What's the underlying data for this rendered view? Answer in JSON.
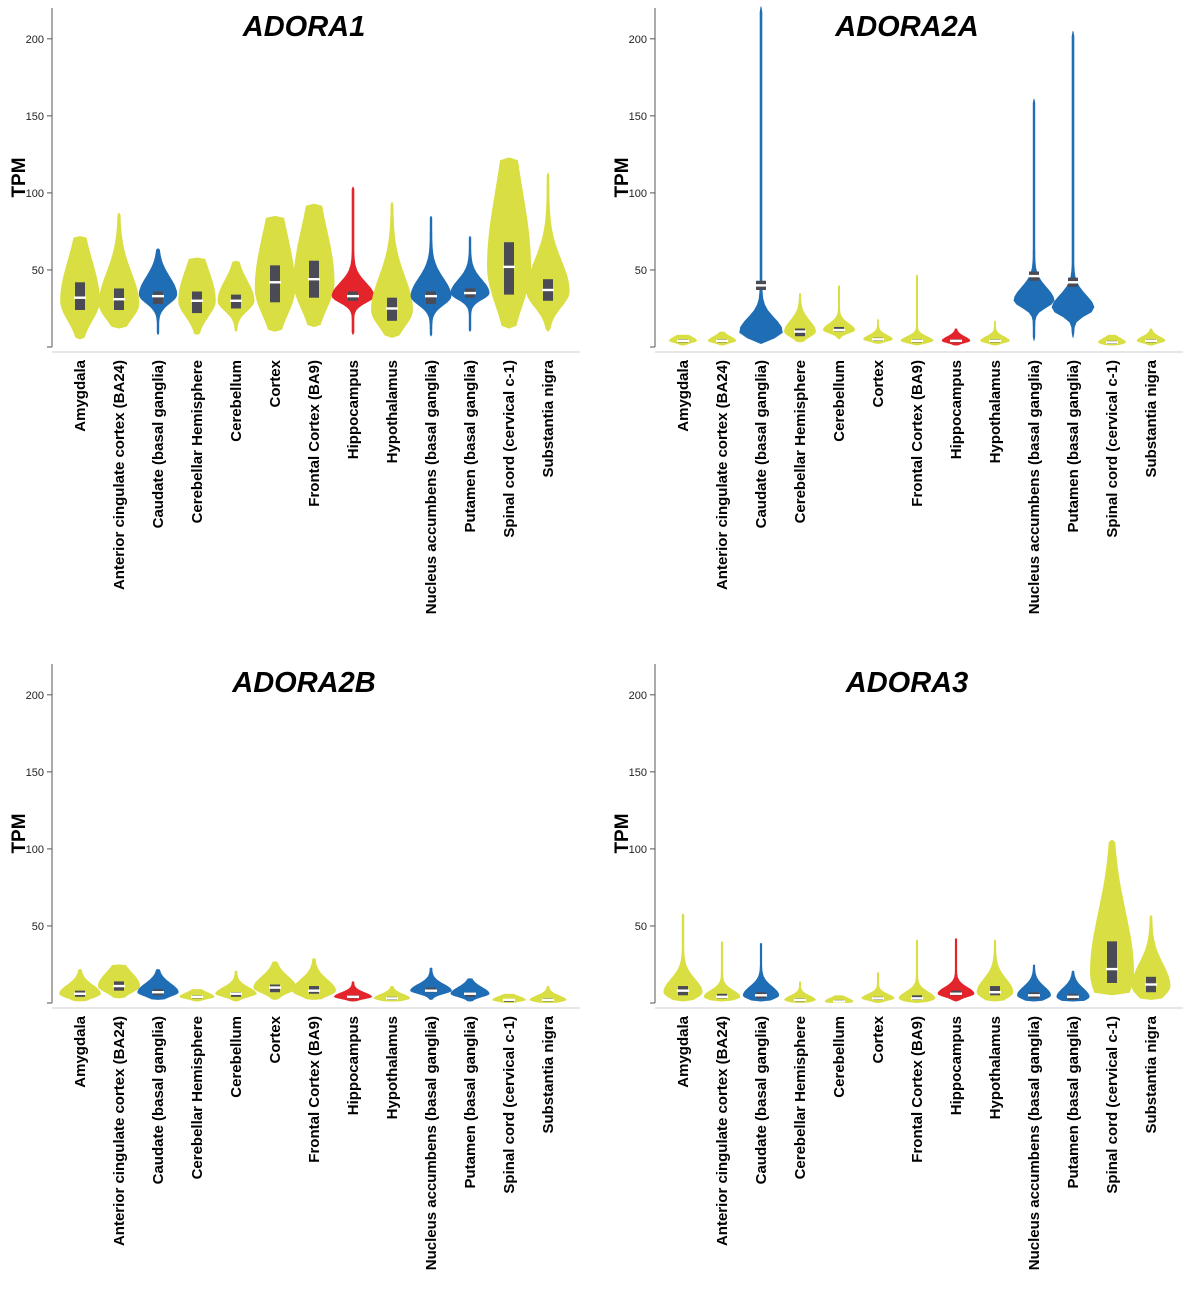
{
  "colors": {
    "yellow": "#d9de43",
    "blue": "#1f6eb5",
    "red": "#e3242b",
    "box": "#4b4b55",
    "median": "#ffffff"
  },
  "chart_data": [
    {
      "type": "violin",
      "title": "ADORA1",
      "ylabel": "TPM",
      "ylim": [
        0,
        220
      ],
      "yticks": [
        50,
        100,
        150,
        200
      ],
      "categories": [
        "Amygdala",
        "Anterior cingulate cortex (BA24)",
        "Caudate (basal ganglia)",
        "Cerebellar Hemisphere",
        "Cerebellum",
        "Cortex",
        "Frontal Cortex (BA9)",
        "Hippocampus",
        "Hypothalamus",
        "Nucleus accumbens (basal ganglia)",
        "Putamen (basal ganglia)",
        "Spinal cord (cervical c-1)",
        "Substantia nigra"
      ],
      "series": [
        {
          "color": "yellow",
          "min": 5,
          "max": 72,
          "q1": 24,
          "median": 32,
          "q3": 42,
          "mode": 30
        },
        {
          "color": "yellow",
          "min": 12,
          "max": 87,
          "q1": 24,
          "median": 31,
          "q3": 38,
          "mode": 28
        },
        {
          "color": "blue",
          "min": 8,
          "max": 64,
          "q1": 28,
          "median": 33,
          "q3": 36,
          "mode": 34
        },
        {
          "color": "yellow",
          "min": 8,
          "max": 58,
          "q1": 22,
          "median": 30,
          "q3": 36,
          "mode": 30
        },
        {
          "color": "yellow",
          "min": 10,
          "max": 56,
          "q1": 25,
          "median": 30,
          "q3": 34,
          "mode": 30
        },
        {
          "color": "yellow",
          "min": 10,
          "max": 85,
          "q1": 29,
          "median": 42,
          "q3": 53,
          "mode": 38
        },
        {
          "color": "yellow",
          "min": 13,
          "max": 93,
          "q1": 32,
          "median": 44,
          "q3": 56,
          "mode": 42
        },
        {
          "color": "red",
          "min": 8,
          "max": 104,
          "q1": 30,
          "median": 33,
          "q3": 36,
          "mode": 33
        },
        {
          "color": "yellow",
          "min": 6,
          "max": 94,
          "q1": 17,
          "median": 25,
          "q3": 32,
          "mode": 24
        },
        {
          "color": "blue",
          "min": 7,
          "max": 85,
          "q1": 28,
          "median": 33,
          "q3": 36,
          "mode": 33
        },
        {
          "color": "blue",
          "min": 10,
          "max": 72,
          "q1": 32,
          "median": 35,
          "q3": 38,
          "mode": 35
        },
        {
          "color": "yellow",
          "min": 12,
          "max": 123,
          "q1": 34,
          "median": 52,
          "q3": 68,
          "mode": 52
        },
        {
          "color": "yellow",
          "min": 10,
          "max": 113,
          "q1": 30,
          "median": 37,
          "q3": 44,
          "mode": 36
        }
      ]
    },
    {
      "type": "violin",
      "title": "ADORA2A",
      "ylabel": "TPM",
      "ylim": [
        0,
        220
      ],
      "yticks": [
        50,
        100,
        150,
        200
      ],
      "categories": [
        "Amygdala",
        "Anterior cingulate cortex (BA24)",
        "Caudate (basal ganglia)",
        "Cerebellar Hemisphere",
        "Cerebellum",
        "Cortex",
        "Frontal Cortex (BA9)",
        "Hippocampus",
        "Hypothalamus",
        "Nucleus accumbens (basal ganglia)",
        "Putamen (basal ganglia)",
        "Spinal cord (cervical c-1)",
        "Substantia nigra"
      ],
      "series": [
        {
          "color": "yellow",
          "min": 1,
          "max": 8,
          "q1": 3,
          "median": 4,
          "q3": 5,
          "mode": 4
        },
        {
          "color": "yellow",
          "min": 1,
          "max": 10,
          "q1": 3,
          "median": 4,
          "q3": 5,
          "mode": 4
        },
        {
          "color": "blue",
          "min": 2,
          "max": 221,
          "q1": 37,
          "median": 40,
          "q3": 43,
          "mode": 10
        },
        {
          "color": "yellow",
          "min": 3,
          "max": 35,
          "q1": 7,
          "median": 10,
          "q3": 12,
          "mode": 10
        },
        {
          "color": "yellow",
          "min": 5,
          "max": 40,
          "q1": 10,
          "median": 11,
          "q3": 13,
          "mode": 11
        },
        {
          "color": "yellow",
          "min": 2,
          "max": 18,
          "q1": 4,
          "median": 5,
          "q3": 6,
          "mode": 5
        },
        {
          "color": "yellow",
          "min": 1,
          "max": 47,
          "q1": 3,
          "median": 4,
          "q3": 5,
          "mode": 4
        },
        {
          "color": "red",
          "min": 1,
          "max": 12,
          "q1": 3,
          "median": 4,
          "q3": 5,
          "mode": 4
        },
        {
          "color": "yellow",
          "min": 1,
          "max": 17,
          "q1": 3,
          "median": 4,
          "q3": 5,
          "mode": 4
        },
        {
          "color": "blue",
          "min": 4,
          "max": 161,
          "q1": 43,
          "median": 46,
          "q3": 49,
          "mode": 30
        },
        {
          "color": "blue",
          "min": 6,
          "max": 205,
          "q1": 39,
          "median": 42,
          "q3": 45,
          "mode": 25
        },
        {
          "color": "yellow",
          "min": 1,
          "max": 8,
          "q1": 2,
          "median": 3,
          "q3": 4,
          "mode": 3
        },
        {
          "color": "yellow",
          "min": 1,
          "max": 12,
          "q1": 3,
          "median": 4,
          "q3": 5,
          "mode": 4
        }
      ]
    },
    {
      "type": "violin",
      "title": "ADORA2B",
      "ylabel": "TPM",
      "ylim": [
        0,
        220
      ],
      "yticks": [
        50,
        100,
        150,
        200
      ],
      "categories": [
        "Amygdala",
        "Anterior cingulate cortex (BA24)",
        "Caudate (basal ganglia)",
        "Cerebellar Hemisphere",
        "Cerebellum",
        "Cortex",
        "Frontal Cortex (BA9)",
        "Hippocampus",
        "Hypothalamus",
        "Nucleus accumbens (basal ganglia)",
        "Putamen (basal ganglia)",
        "Spinal cord (cervical c-1)",
        "Substantia nigra"
      ],
      "series": [
        {
          "color": "yellow",
          "min": 1,
          "max": 22,
          "q1": 4,
          "median": 6,
          "q3": 8,
          "mode": 6
        },
        {
          "color": "yellow",
          "min": 3,
          "max": 25,
          "q1": 8,
          "median": 11,
          "q3": 14,
          "mode": 11
        },
        {
          "color": "blue",
          "min": 2,
          "max": 22,
          "q1": 5,
          "median": 7,
          "q3": 9,
          "mode": 7
        },
        {
          "color": "yellow",
          "min": 1,
          "max": 9,
          "q1": 3,
          "median": 4,
          "q3": 5,
          "mode": 4
        },
        {
          "color": "yellow",
          "min": 1,
          "max": 21,
          "q1": 4,
          "median": 6,
          "q3": 7,
          "mode": 6
        },
        {
          "color": "yellow",
          "min": 2,
          "max": 27,
          "q1": 7,
          "median": 10,
          "q3": 12,
          "mode": 10
        },
        {
          "color": "yellow",
          "min": 2,
          "max": 29,
          "q1": 6,
          "median": 8,
          "q3": 11,
          "mode": 8
        },
        {
          "color": "red",
          "min": 1,
          "max": 14,
          "q1": 3,
          "median": 4,
          "q3": 5,
          "mode": 4
        },
        {
          "color": "yellow",
          "min": 1,
          "max": 11,
          "q1": 2,
          "median": 3,
          "q3": 4,
          "mode": 3
        },
        {
          "color": "blue",
          "min": 2,
          "max": 23,
          "q1": 7,
          "median": 8,
          "q3": 10,
          "mode": 8
        },
        {
          "color": "blue",
          "min": 1,
          "max": 16,
          "q1": 4,
          "median": 6,
          "q3": 7,
          "mode": 6
        },
        {
          "color": "yellow",
          "min": 0,
          "max": 6,
          "q1": 1,
          "median": 2,
          "q3": 2,
          "mode": 2
        },
        {
          "color": "yellow",
          "min": 0,
          "max": 11,
          "q1": 1,
          "median": 2,
          "q3": 3,
          "mode": 2
        }
      ]
    },
    {
      "type": "violin",
      "title": "ADORA3",
      "ylabel": "TPM",
      "ylim": [
        0,
        220
      ],
      "yticks": [
        50,
        100,
        150,
        200
      ],
      "categories": [
        "Amygdala",
        "Anterior cingulate cortex (BA24)",
        "Caudate (basal ganglia)",
        "Cerebellar Hemisphere",
        "Cerebellum",
        "Cortex",
        "Frontal Cortex (BA9)",
        "Hippocampus",
        "Hypothalamus",
        "Nucleus accumbens (basal ganglia)",
        "Putamen (basal ganglia)",
        "Spinal cord (cervical c-1)",
        "Substantia nigra"
      ],
      "series": [
        {
          "color": "yellow",
          "min": 1,
          "max": 58,
          "q1": 5,
          "median": 8,
          "q3": 11,
          "mode": 7
        },
        {
          "color": "yellow",
          "min": 1,
          "max": 40,
          "q1": 3,
          "median": 4,
          "q3": 6,
          "mode": 4
        },
        {
          "color": "blue",
          "min": 1,
          "max": 39,
          "q1": 3,
          "median": 5,
          "q3": 7,
          "mode": 5
        },
        {
          "color": "yellow",
          "min": 0,
          "max": 14,
          "q1": 1,
          "median": 2,
          "q3": 3,
          "mode": 2
        },
        {
          "color": "yellow",
          "min": 0,
          "max": 5,
          "q1": 1,
          "median": 1,
          "q3": 2,
          "mode": 1
        },
        {
          "color": "yellow",
          "min": 0,
          "max": 20,
          "q1": 2,
          "median": 3,
          "q3": 4,
          "mode": 3
        },
        {
          "color": "yellow",
          "min": 0,
          "max": 41,
          "q1": 2,
          "median": 3,
          "q3": 5,
          "mode": 3
        },
        {
          "color": "red",
          "min": 1,
          "max": 42,
          "q1": 5,
          "median": 6,
          "q3": 8,
          "mode": 6
        },
        {
          "color": "yellow",
          "min": 1,
          "max": 41,
          "q1": 5,
          "median": 7,
          "q3": 11,
          "mode": 7
        },
        {
          "color": "blue",
          "min": 1,
          "max": 25,
          "q1": 3,
          "median": 5,
          "q3": 7,
          "mode": 5
        },
        {
          "color": "blue",
          "min": 1,
          "max": 21,
          "q1": 2,
          "median": 4,
          "q3": 6,
          "mode": 4
        },
        {
          "color": "yellow",
          "min": 5,
          "max": 106,
          "q1": 13,
          "median": 22,
          "q3": 40,
          "mode": 20
        },
        {
          "color": "yellow",
          "min": 2,
          "max": 57,
          "q1": 7,
          "median": 12,
          "q3": 17,
          "mode": 11
        }
      ]
    }
  ]
}
